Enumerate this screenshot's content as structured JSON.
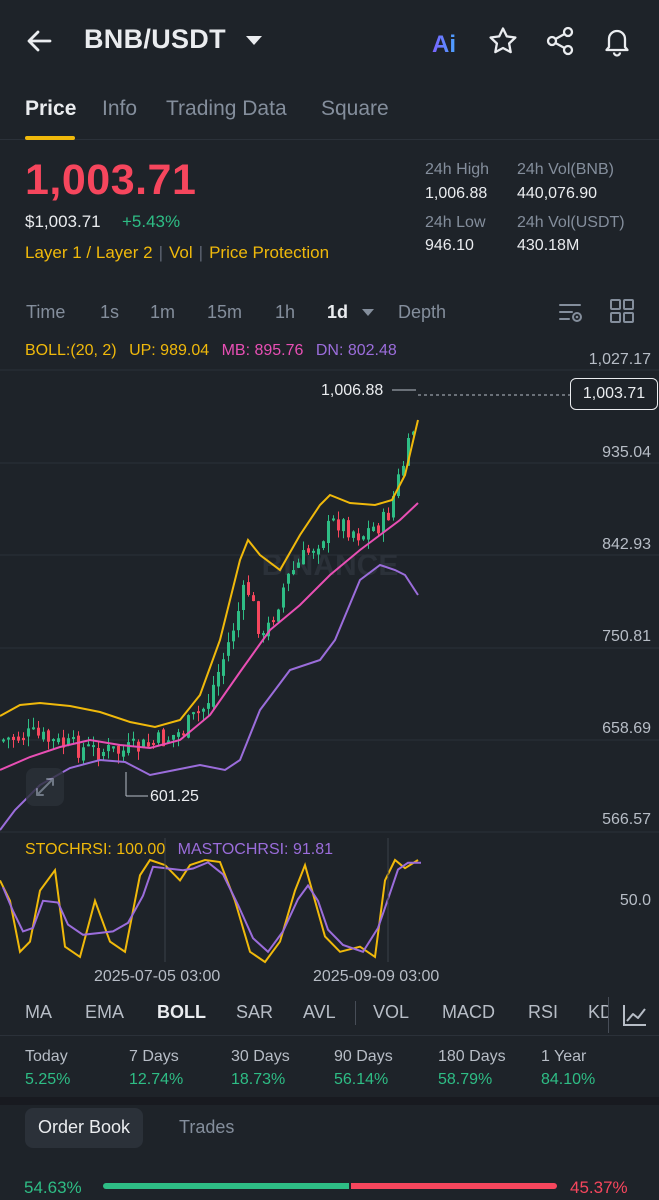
{
  "header": {
    "pair": "BNB/USDT",
    "icons": [
      "back-arrow-icon",
      "ai-icon",
      "star-icon",
      "share-icon",
      "bell-icon"
    ]
  },
  "tabs": [
    {
      "label": "Price",
      "active": true
    },
    {
      "label": "Info",
      "active": false
    },
    {
      "label": "Trading Data",
      "active": false
    },
    {
      "label": "Square",
      "active": false
    }
  ],
  "ticker": {
    "last_price": "1,003.71",
    "usd_price": "$1,003.71",
    "change": "+5.43%",
    "tags": [
      "Layer 1 / Layer 2",
      "Vol",
      "Price Protection"
    ],
    "high_label": "24h High",
    "high_value": "1,006.88",
    "vol_bnb_label": "24h Vol(BNB)",
    "vol_bnb_value": "440,076.90",
    "low_label": "24h Low",
    "low_value": "946.10",
    "vol_usdt_label": "24h Vol(USDT)",
    "vol_usdt_value": "430.18M"
  },
  "timeframes": [
    {
      "label": "Time"
    },
    {
      "label": "1s"
    },
    {
      "label": "1m"
    },
    {
      "label": "15m"
    },
    {
      "label": "1h"
    },
    {
      "label": "1d"
    },
    {
      "label": "Depth"
    }
  ],
  "boll": {
    "label": "BOLL:(20, 2)",
    "up": "UP: 989.04",
    "mb": "MB: 895.76",
    "dn": "DN: 802.48"
  },
  "axis": {
    "price_ticks": [
      "1,027.17",
      "935.04",
      "842.93",
      "750.81",
      "658.69",
      "566.57"
    ],
    "stoch_tick": "50.0",
    "x_ticks": [
      "2025-07-05 03:00",
      "2025-09-09 03:00"
    ],
    "high_marker": "1,006.88",
    "low_marker": "601.25",
    "current_tag": "1,003.71"
  },
  "stochrsi": {
    "stoch": "STOCHRSI: 100.00",
    "ma": "MASTOCHRSI: 91.81"
  },
  "colors": {
    "up": "#2ebd85",
    "down": "#f6465d",
    "accent": "#f0b90b",
    "boll_up": "#f0b90b",
    "boll_mb": "#e84fb4",
    "boll_dn": "#9b6ddb"
  },
  "indicators": [
    {
      "label": "MA"
    },
    {
      "label": "EMA"
    },
    {
      "label": "BOLL",
      "active": true
    },
    {
      "label": "SAR"
    },
    {
      "label": "AVL"
    },
    {
      "label": "VOL"
    },
    {
      "label": "MACD"
    },
    {
      "label": "RSI"
    },
    {
      "label": "KD"
    }
  ],
  "performance": [
    {
      "label": "Today",
      "value": "5.25%"
    },
    {
      "label": "7 Days",
      "value": "12.74%"
    },
    {
      "label": "30 Days",
      "value": "18.73%"
    },
    {
      "label": "90 Days",
      "value": "56.14%"
    },
    {
      "label": "180 Days",
      "value": "58.79%"
    },
    {
      "label": "1 Year",
      "value": "84.10%"
    }
  ],
  "orderbook": {
    "tabs": [
      "Order Book",
      "Trades"
    ],
    "buy_ratio": "54.63%",
    "sell_ratio": "45.37%",
    "buy_fraction": 0.5463
  }
}
